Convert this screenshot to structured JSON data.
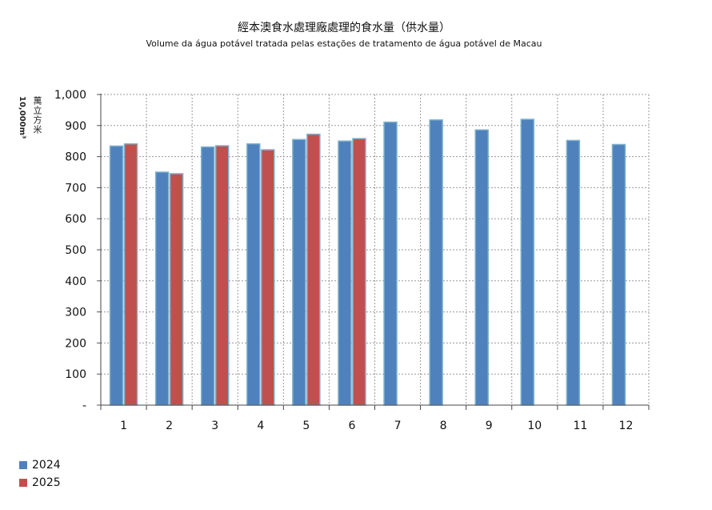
{
  "chart_data": {
    "type": "bar",
    "title": "經本澳食水處理廠處理的食水量（供水量）",
    "subtitle": "Volume da água potável tratada pelas estações de tratamento de água potável de Macau",
    "ylabel_zh": "萬立方米",
    "ylabel_en": "10,000m³",
    "categories": [
      "1",
      "2",
      "3",
      "4",
      "5",
      "6",
      "7",
      "8",
      "9",
      "10",
      "11",
      "12"
    ],
    "ylim": [
      0,
      1000
    ],
    "yticks": [
      {
        "value": 0,
        "label": "-"
      },
      {
        "value": 100,
        "label": "100"
      },
      {
        "value": 200,
        "label": "200"
      },
      {
        "value": 300,
        "label": "300"
      },
      {
        "value": 400,
        "label": "400"
      },
      {
        "value": 500,
        "label": "500"
      },
      {
        "value": 600,
        "label": "600"
      },
      {
        "value": 700,
        "label": "700"
      },
      {
        "value": 800,
        "label": "800"
      },
      {
        "value": 900,
        "label": "900"
      },
      {
        "value": 1000,
        "label": "1,000"
      }
    ],
    "grid": true,
    "legend_position": "bottom-left",
    "series": [
      {
        "name": "2024",
        "color": "#4f81bd",
        "values": [
          834,
          750,
          831,
          841,
          855,
          850,
          911,
          918,
          886,
          920,
          852,
          839
        ]
      },
      {
        "name": "2025",
        "color": "#c0504d",
        "values": [
          841,
          745,
          835,
          822,
          872,
          858,
          null,
          null,
          null,
          null,
          null,
          null
        ]
      }
    ]
  }
}
